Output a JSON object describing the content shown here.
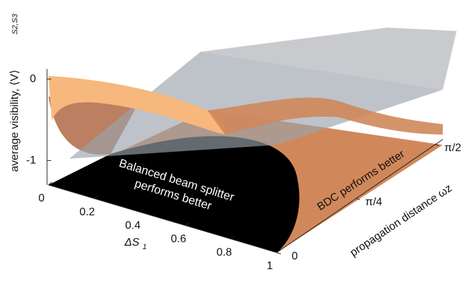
{
  "chart_data": {
    "type": "surface3d",
    "x_label": "ΔS",
    "x_label_subscript": "1",
    "y_label": "propagation distance ωz",
    "z_label": "average visibility, ⟨V⟩",
    "z_label_subscript": "S2,S3",
    "xlim": [
      0,
      1
    ],
    "xticks": [
      0,
      0.2,
      0.4,
      0.6,
      0.8,
      1
    ],
    "ylim": [
      0,
      1.65
    ],
    "yticks": [
      0,
      {
        "value": 0.7854,
        "label": "π/4"
      },
      {
        "value": 1.5708,
        "label": "π/2"
      }
    ],
    "zlim": [
      -1.3,
      0.1
    ],
    "zticks": [
      -1,
      0
    ],
    "annotations": [
      "Balanced beam splitter",
      "performs better",
      "BDC performs better"
    ]
  }
}
